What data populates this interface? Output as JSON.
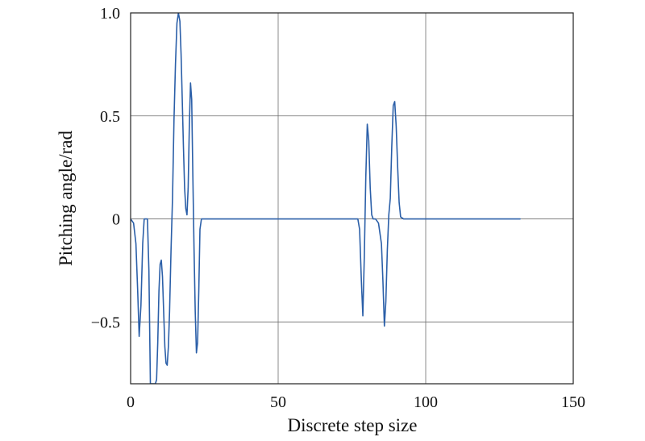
{
  "chart_data": {
    "type": "line",
    "title": "",
    "xlabel": "Discrete step size",
    "ylabel": "Pitching angle/rad",
    "xlim": [
      0,
      150
    ],
    "ylim": [
      -0.8,
      1.0
    ],
    "xticks": [
      0,
      50,
      100,
      150
    ],
    "xtick_labels": [
      "0",
      "50",
      "100",
      "150"
    ],
    "yticks": [
      -0.5,
      0,
      0.5,
      1.0
    ],
    "ytick_labels": [
      "−0.5",
      "0",
      "0.5",
      "1.0"
    ],
    "grid": true,
    "legend": "none",
    "series": [
      {
        "color": "#2b5fa8",
        "x": [
          0,
          1.0,
          1.8,
          2.4,
          2.9,
          3.5,
          4.1,
          4.6,
          5.2,
          5.7,
          6.2,
          6.7,
          7.2,
          7.6,
          8.0,
          8.4,
          8.8,
          9.2,
          9.6,
          10.0,
          10.4,
          10.8,
          11.2,
          11.6,
          12.0,
          12.4,
          12.8,
          13.2,
          13.7,
          14.2,
          14.7,
          15.2,
          15.7,
          16.2,
          16.7,
          17.1,
          17.5,
          17.9,
          18.3,
          18.7,
          19.1,
          19.5,
          19.9,
          20.3,
          20.7,
          21.1,
          21.5,
          21.9,
          22.3,
          22.7,
          23.1,
          23.5,
          24.0,
          24.5,
          30,
          40,
          50,
          60,
          70,
          76.0,
          77.0,
          77.6,
          78.2,
          78.7,
          79.2,
          79.7,
          80.2,
          80.7,
          81.2,
          81.7,
          82.2,
          83.0,
          84.0,
          85.0,
          85.5,
          86.0,
          86.5,
          87.0,
          87.5,
          88.0,
          88.5,
          89.0,
          89.5,
          90.0,
          90.5,
          91.0,
          91.5,
          92.5,
          95,
          100,
          110,
          120,
          132
        ],
        "y": [
          0,
          -0.02,
          -0.12,
          -0.35,
          -0.57,
          -0.42,
          -0.12,
          0,
          0,
          0,
          -0.25,
          -0.8,
          -0.8,
          -0.8,
          -0.8,
          -0.8,
          -0.78,
          -0.6,
          -0.35,
          -0.22,
          -0.2,
          -0.28,
          -0.45,
          -0.62,
          -0.7,
          -0.71,
          -0.62,
          -0.45,
          -0.15,
          0.1,
          0.48,
          0.75,
          0.95,
          1.0,
          0.96,
          0.8,
          0.58,
          0.35,
          0.15,
          0.05,
          0.02,
          0.15,
          0.45,
          0.66,
          0.58,
          0.2,
          -0.15,
          -0.45,
          -0.65,
          -0.6,
          -0.35,
          -0.05,
          0,
          0,
          0,
          0,
          0,
          0,
          0,
          0,
          0,
          -0.05,
          -0.3,
          -0.47,
          -0.18,
          0.2,
          0.46,
          0.38,
          0.15,
          0.02,
          0,
          0,
          -0.02,
          -0.12,
          -0.3,
          -0.52,
          -0.4,
          -0.15,
          0.02,
          0.1,
          0.35,
          0.55,
          0.57,
          0.45,
          0.25,
          0.08,
          0.01,
          0,
          0,
          0,
          0,
          0,
          0
        ]
      }
    ]
  }
}
